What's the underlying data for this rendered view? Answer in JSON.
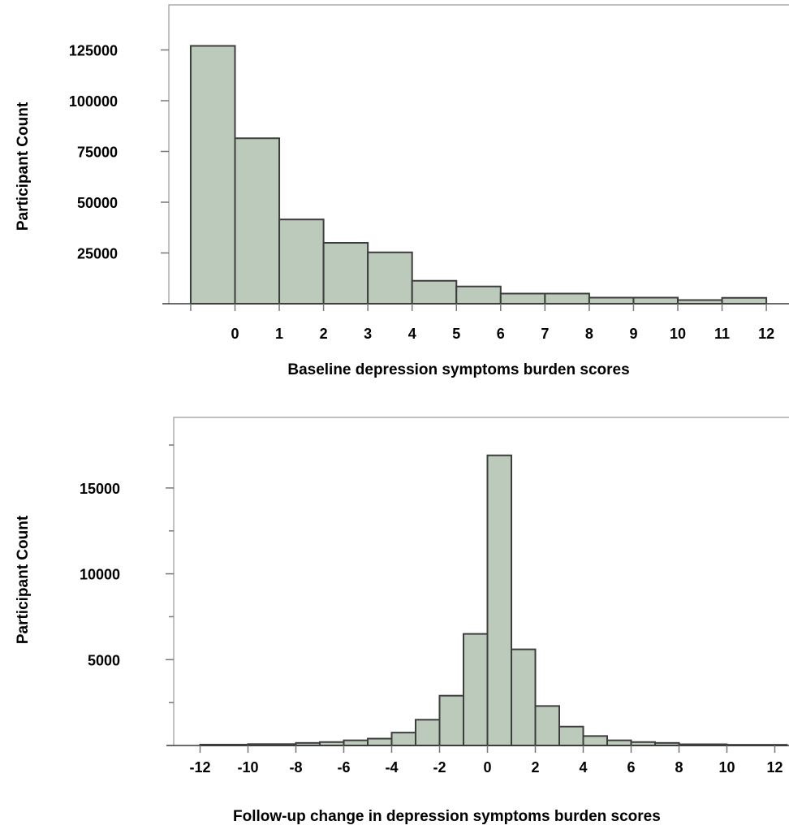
{
  "chart_data": [
    {
      "type": "bar",
      "xlabel": "Baseline depression symptoms  burden scores",
      "ylabel": "Participant Count",
      "bins": [
        {
          "x0": -1,
          "x1": 0,
          "value": 127000
        },
        {
          "x0": 0,
          "x1": 1,
          "value": 81500
        },
        {
          "x0": 1,
          "x1": 2,
          "value": 41500
        },
        {
          "x0": 2,
          "x1": 3,
          "value": 30000
        },
        {
          "x0": 3,
          "x1": 4,
          "value": 25300
        },
        {
          "x0": 4,
          "x1": 5,
          "value": 11300
        },
        {
          "x0": 5,
          "x1": 6,
          "value": 8500
        },
        {
          "x0": 6,
          "x1": 7,
          "value": 5000
        },
        {
          "x0": 7,
          "x1": 8,
          "value": 5000
        },
        {
          "x0": 8,
          "x1": 9,
          "value": 3000
        },
        {
          "x0": 9,
          "x1": 10,
          "value": 3000
        },
        {
          "x0": 10,
          "x1": 11,
          "value": 1800
        },
        {
          "x0": 11,
          "x1": 12,
          "value": 2900
        }
      ],
      "xticks": [
        0,
        1,
        2,
        3,
        4,
        5,
        6,
        7,
        8,
        9,
        10,
        11,
        12
      ],
      "xticks_unlabeled": [
        -1
      ],
      "yticks": [
        25000,
        50000,
        75000,
        100000,
        125000
      ],
      "xlim": [
        -1.5,
        13
      ],
      "ylim": [
        0,
        140000
      ]
    },
    {
      "type": "bar",
      "xlabel": "Follow-up change in depression symptoms  burden scores",
      "ylabel": "Participant Count",
      "bins": [
        {
          "x0": -12,
          "x1": -10,
          "value": 50
        },
        {
          "x0": -10,
          "x1": -8,
          "value": 80
        },
        {
          "x0": -8,
          "x1": -7,
          "value": 150
        },
        {
          "x0": -7,
          "x1": -6,
          "value": 200
        },
        {
          "x0": -6,
          "x1": -5,
          "value": 300
        },
        {
          "x0": -5,
          "x1": -4,
          "value": 400
        },
        {
          "x0": -4,
          "x1": -3,
          "value": 750
        },
        {
          "x0": -3,
          "x1": -2,
          "value": 1500
        },
        {
          "x0": -2,
          "x1": -1,
          "value": 2900
        },
        {
          "x0": -1,
          "x1": 0,
          "value": 6500
        },
        {
          "x0": 0,
          "x1": 1,
          "value": 16900
        },
        {
          "x0": 1,
          "x1": 2,
          "value": 5600
        },
        {
          "x0": 2,
          "x1": 3,
          "value": 2300
        },
        {
          "x0": 3,
          "x1": 4,
          "value": 1100
        },
        {
          "x0": 4,
          "x1": 5,
          "value": 550
        },
        {
          "x0": 5,
          "x1": 6,
          "value": 300
        },
        {
          "x0": 6,
          "x1": 7,
          "value": 200
        },
        {
          "x0": 7,
          "x1": 8,
          "value": 150
        },
        {
          "x0": 8,
          "x1": 10,
          "value": 70
        },
        {
          "x0": 10,
          "x1": 12.5,
          "value": 40
        }
      ],
      "xticks": [
        -12,
        -10,
        -8,
        -6,
        -4,
        -2,
        0,
        2,
        4,
        6,
        8,
        10,
        12
      ],
      "yticks": [
        5000,
        10000,
        15000
      ],
      "yticks_minor": [
        2500,
        7500,
        12500,
        17500
      ],
      "xlim": [
        -13,
        12.5
      ],
      "ylim": [
        0,
        19000
      ]
    }
  ]
}
